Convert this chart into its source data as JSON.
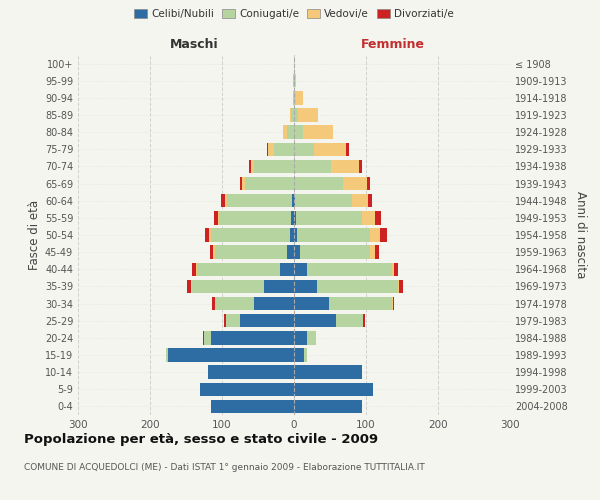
{
  "age_groups": [
    "0-4",
    "5-9",
    "10-14",
    "15-19",
    "20-24",
    "25-29",
    "30-34",
    "35-39",
    "40-44",
    "45-49",
    "50-54",
    "55-59",
    "60-64",
    "65-69",
    "70-74",
    "75-79",
    "80-84",
    "85-89",
    "90-94",
    "95-99",
    "100+"
  ],
  "birth_years": [
    "2004-2008",
    "1999-2003",
    "1994-1998",
    "1989-1993",
    "1984-1988",
    "1979-1983",
    "1974-1978",
    "1969-1973",
    "1964-1968",
    "1959-1963",
    "1954-1958",
    "1949-1953",
    "1944-1948",
    "1939-1943",
    "1934-1938",
    "1929-1933",
    "1924-1928",
    "1919-1923",
    "1914-1918",
    "1909-1913",
    "≤ 1908"
  ],
  "maschi": {
    "celibi": [
      115,
      130,
      120,
      175,
      115,
      75,
      55,
      42,
      20,
      10,
      5,
      4,
      3,
      0,
      0,
      0,
      0,
      0,
      0,
      0,
      0
    ],
    "coniugati": [
      0,
      0,
      0,
      3,
      10,
      20,
      55,
      100,
      115,
      100,
      110,
      100,
      90,
      68,
      55,
      28,
      10,
      4,
      2,
      1,
      0
    ],
    "vedovi": [
      0,
      0,
      0,
      0,
      0,
      0,
      0,
      1,
      1,
      2,
      3,
      2,
      3,
      4,
      5,
      8,
      5,
      2,
      0,
      0,
      0
    ],
    "divorziati": [
      0,
      0,
      0,
      0,
      1,
      2,
      4,
      5,
      5,
      5,
      6,
      5,
      5,
      3,
      2,
      1,
      0,
      0,
      0,
      0,
      0
    ]
  },
  "femmine": {
    "nubili": [
      95,
      110,
      95,
      14,
      18,
      58,
      48,
      32,
      18,
      8,
      4,
      3,
      2,
      0,
      0,
      0,
      0,
      0,
      0,
      0,
      0
    ],
    "coniugate": [
      0,
      0,
      0,
      4,
      12,
      38,
      88,
      112,
      118,
      98,
      102,
      92,
      78,
      68,
      52,
      28,
      12,
      6,
      3,
      1,
      0
    ],
    "vedove": [
      0,
      0,
      0,
      0,
      0,
      0,
      1,
      2,
      3,
      7,
      13,
      18,
      23,
      33,
      38,
      44,
      42,
      28,
      10,
      2,
      0
    ],
    "divorziate": [
      0,
      0,
      0,
      0,
      1,
      2,
      2,
      5,
      5,
      5,
      10,
      8,
      5,
      4,
      4,
      4,
      0,
      0,
      0,
      0,
      0
    ]
  },
  "colors": {
    "celibi": "#2e6da4",
    "coniugati": "#b6d4a0",
    "vedovi": "#f5c97a",
    "divorziati": "#cc2222"
  },
  "title": "Popolazione per età, sesso e stato civile - 2009",
  "subtitle": "COMUNE DI ACQUEDOLCI (ME) - Dati ISTAT 1° gennaio 2009 - Elaborazione TUTTITALIA.IT",
  "label_maschi": "Maschi",
  "label_femmine": "Femmine",
  "ylabel_left": "Fasce di età",
  "ylabel_right": "Anni di nascita",
  "xlim": 300,
  "background_color": "#f5f5f0",
  "grid_color": "#cccccc",
  "legend": [
    "Celibi/Nubili",
    "Coniugati/e",
    "Vedovi/e",
    "Divorziati/e"
  ]
}
